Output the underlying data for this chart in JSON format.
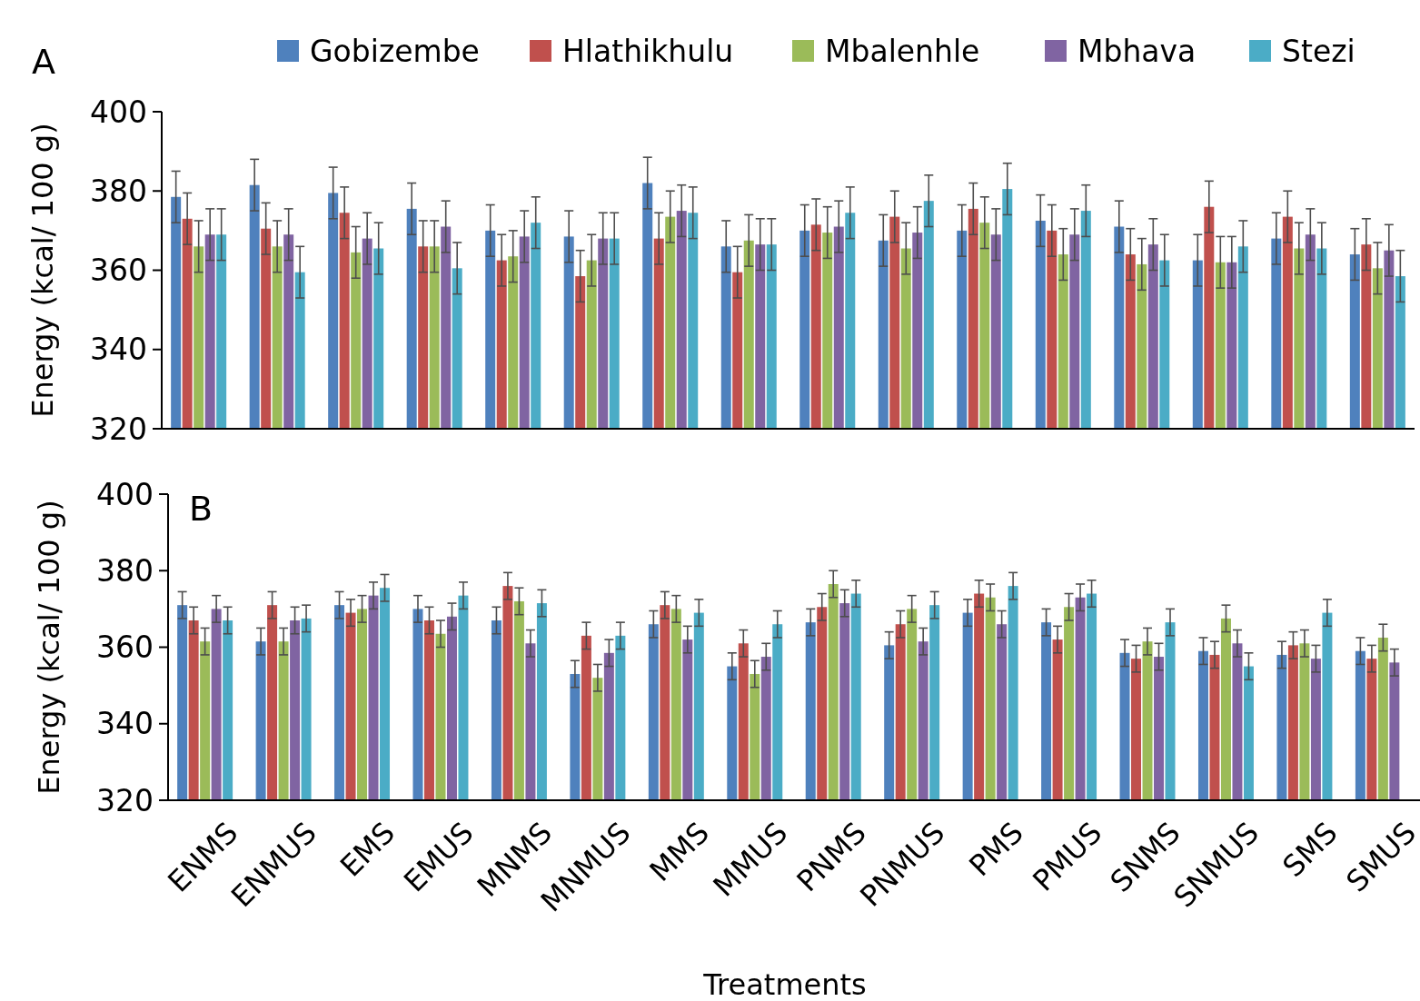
{
  "chart_data": [
    {
      "type": "bar",
      "ylabel": "Energy (kcal/ 100 g)",
      "annotations": [
        "A"
      ],
      "categories": [
        null,
        null,
        null,
        null,
        null,
        null,
        null,
        null,
        null,
        null,
        null,
        null,
        null,
        null,
        null,
        null
      ],
      "ylim": [
        320,
        400
      ],
      "yticks": [
        320,
        340,
        360,
        380,
        400
      ],
      "grid": false,
      "legend": "top",
      "tick_labels": "y",
      "series": [
        {
          "name": "Gobizembe",
          "color": "#4f81bd",
          "values": [
            378.5,
            381.5,
            379.5,
            375.5,
            370,
            368.5,
            382,
            366,
            370,
            367.5,
            370,
            372.5,
            371,
            362.5,
            368,
            364
          ],
          "errors": [
            6.5,
            6.5,
            6.5,
            6.5,
            6.5,
            6.5,
            6.5,
            6.5,
            6.5,
            6.5,
            6.5,
            6.5,
            6.5,
            6.5,
            6.5,
            6.5
          ]
        },
        {
          "name": "Hlathikhulu",
          "color": "#c0504d",
          "values": [
            373,
            370.5,
            374.5,
            366,
            362.5,
            358.5,
            368,
            359.5,
            371.5,
            373.5,
            375.5,
            370,
            364,
            376,
            373.5,
            366.5
          ],
          "errors": [
            6.5,
            6.5,
            6.5,
            6.5,
            6.5,
            6.5,
            6.5,
            6.5,
            6.5,
            6.5,
            6.5,
            6.5,
            6.5,
            6.5,
            6.5,
            6.5
          ]
        },
        {
          "name": "Mbalenhle",
          "color": "#9bbb59",
          "values": [
            366,
            366,
            364.5,
            366,
            363.5,
            362.5,
            373.5,
            367.5,
            369.5,
            365.5,
            372,
            364,
            361.5,
            362,
            365.5,
            360.5
          ],
          "errors": [
            6.5,
            6.5,
            6.5,
            6.5,
            6.5,
            6.5,
            6.5,
            6.5,
            6.5,
            6.5,
            6.5,
            6.5,
            6.5,
            6.5,
            6.5,
            6.5
          ]
        },
        {
          "name": "Mbhava",
          "color": "#8064a2",
          "values": [
            369,
            369,
            368,
            371,
            368.5,
            368,
            375,
            366.5,
            371,
            369.5,
            369,
            369,
            366.5,
            362,
            369,
            365
          ],
          "errors": [
            6.5,
            6.5,
            6.5,
            6.5,
            6.5,
            6.5,
            6.5,
            6.5,
            6.5,
            6.5,
            6.5,
            6.5,
            6.5,
            6.5,
            6.5,
            6.5
          ]
        },
        {
          "name": "Stezi",
          "color": "#4bacc6",
          "values": [
            369,
            359.5,
            365.5,
            360.5,
            372,
            368,
            374.5,
            366.5,
            374.5,
            377.5,
            380.5,
            375,
            362.5,
            366,
            365.5,
            358.5
          ],
          "errors": [
            6.5,
            6.5,
            6.5,
            6.5,
            6.5,
            6.5,
            6.5,
            6.5,
            6.5,
            6.5,
            6.5,
            6.5,
            6.5,
            6.5,
            6.5,
            6.5
          ]
        }
      ]
    },
    {
      "type": "bar",
      "ylabel": "Energy (kcal/ 100 g)",
      "xlabel": "Treatments",
      "annotations": [
        "B"
      ],
      "categories": [
        "ENMS",
        "ENMUS",
        "EMS",
        "EMUS",
        "MNMS",
        "MNMUS",
        "MMS",
        "MMUS",
        "PNMS",
        "PNMUS",
        "PMS",
        "PMUS",
        "SNMS",
        "SNMUS",
        "SMS",
        "SMUS"
      ],
      "ylim": [
        320,
        400
      ],
      "yticks": [
        320,
        340,
        360,
        380,
        400
      ],
      "grid": false,
      "legend": false,
      "series": [
        {
          "color": "#4f81bd",
          "values": [
            371,
            361.5,
            371,
            370,
            367,
            353,
            366,
            355,
            366.5,
            360.5,
            369,
            366.5,
            358.5,
            359,
            358,
            359
          ],
          "errors": [
            3.5,
            3.5,
            3.5,
            3.5,
            3.5,
            3.5,
            3.5,
            3.5,
            3.5,
            3.5,
            3.5,
            3.5,
            3.5,
            3.5,
            3.5,
            3.5
          ]
        },
        {
          "color": "#c0504d",
          "values": [
            367,
            371,
            369,
            367,
            376,
            363,
            371,
            361,
            370.5,
            366,
            374,
            362,
            357,
            358,
            360.5,
            357
          ],
          "errors": [
            3.5,
            3.5,
            3.5,
            3.5,
            3.5,
            3.5,
            3.5,
            3.5,
            3.5,
            3.5,
            3.5,
            3.5,
            3.5,
            3.5,
            3.5,
            3.5
          ]
        },
        {
          "color": "#9bbb59",
          "values": [
            361.5,
            361.5,
            370,
            363.5,
            372,
            352,
            370,
            353,
            376.5,
            370,
            373,
            370.5,
            361.5,
            367.5,
            361,
            362.5
          ],
          "errors": [
            3.5,
            3.5,
            3.5,
            3.5,
            3.5,
            3.5,
            3.5,
            3.5,
            3.5,
            3.5,
            3.5,
            3.5,
            3.5,
            3.5,
            3.5,
            3.5
          ]
        },
        {
          "color": "#8064a2",
          "values": [
            370,
            367,
            373.5,
            368,
            361,
            358.5,
            362,
            357.5,
            371.5,
            361.5,
            366,
            373,
            357.5,
            361,
            357,
            356
          ],
          "errors": [
            3.5,
            3.5,
            3.5,
            3.5,
            3.5,
            3.5,
            3.5,
            3.5,
            3.5,
            3.5,
            3.5,
            3.5,
            3.5,
            3.5,
            3.5,
            3.5
          ]
        },
        {
          "color": "#4bacc6",
          "values": [
            367,
            367.5,
            375.5,
            373.5,
            371.5,
            363,
            369,
            366,
            374,
            371,
            376,
            374,
            366.5,
            355,
            369,
            null
          ],
          "errors": [
            3.5,
            3.5,
            3.5,
            3.5,
            3.5,
            3.5,
            3.5,
            3.5,
            3.5,
            3.5,
            3.5,
            3.5,
            3.5,
            3.5,
            3.5,
            null
          ]
        }
      ]
    }
  ]
}
